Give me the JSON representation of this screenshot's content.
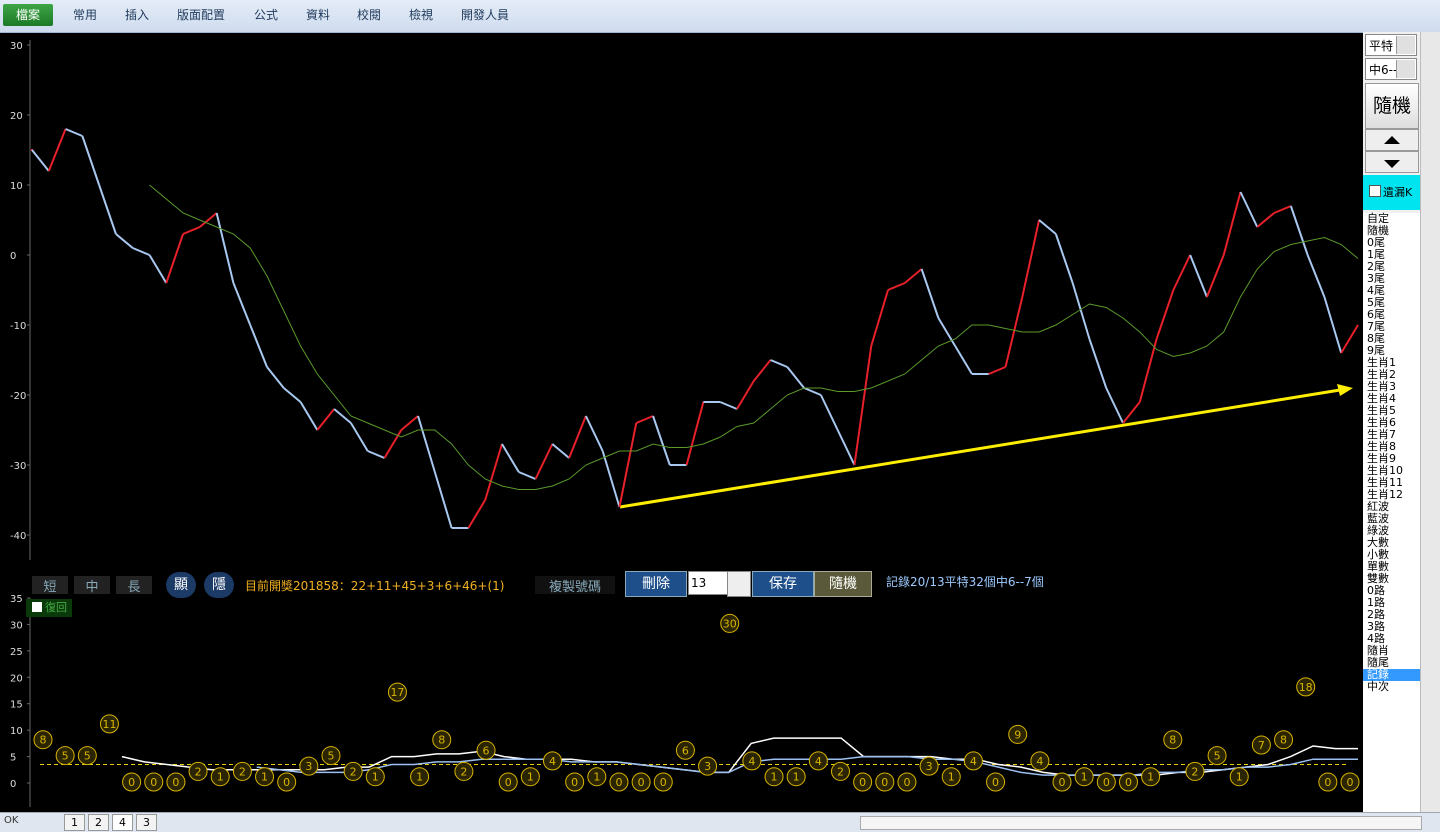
{
  "ribbon": {
    "tabs": [
      "檔案",
      "常用",
      "插入",
      "版面配置",
      "公式",
      "資料",
      "校閱",
      "檢視",
      "開發人員"
    ]
  },
  "side": {
    "dropdowns": [
      "平特",
      "中6--"
    ],
    "button": "隨機",
    "checkbox": "遺漏K",
    "items": [
      "自定",
      "隨機",
      "0尾",
      "1尾",
      "2尾",
      "3尾",
      "4尾",
      "5尾",
      "6尾",
      "7尾",
      "8尾",
      "9尾",
      "生肖1",
      "生肖2",
      "生肖3",
      "生肖4",
      "生肖5",
      "生肖6",
      "生肖7",
      "生肖8",
      "生肖9",
      "生肖10",
      "生肖11",
      "生肖12",
      "紅波",
      "藍波",
      "綠波",
      "大數",
      "小數",
      "單數",
      "雙數",
      "0路",
      "1路",
      "2路",
      "3路",
      "4路",
      "隨肖",
      "隨尾",
      "記錄",
      "中次"
    ],
    "selected": "記錄"
  },
  "controls": {
    "range_buttons": [
      "短",
      "中",
      "長"
    ],
    "show": "顯",
    "hide": "隱",
    "draw_info": "目前開獎201858：22+11+45+3+6+46+(1)",
    "copy": "複製號碼",
    "delete": "刪除",
    "count": "13",
    "save": "保存",
    "random": "隨機",
    "record": "記錄20/13平特32個中6--7個",
    "checkbox": "復回"
  },
  "sheets": [
    "1",
    "2",
    "4",
    "3"
  ],
  "status": "OK",
  "chart_data": [
    {
      "type": "line",
      "ylim": [
        -43.5,
        30.5
      ],
      "yticks": [
        30,
        20,
        10,
        0,
        -10,
        -20,
        -30,
        -40
      ],
      "series": [
        {
          "name": "走勢",
          "color": "#e8202a",
          "values": [
            15,
            12,
            18,
            17,
            10,
            3,
            1,
            0,
            -4,
            3,
            4,
            6,
            -4,
            -10,
            -16,
            -19,
            -21,
            -25,
            -22,
            -24,
            -28,
            -29,
            -25,
            -23,
            -31,
            -39,
            -39,
            -35,
            -27,
            -31,
            -32,
            -27,
            -29,
            -23,
            -28,
            -36,
            -24,
            -23,
            -30,
            -30,
            -21,
            -21,
            -22,
            -18,
            -15,
            -16,
            -19,
            -20,
            -25,
            -30,
            -13,
            -5,
            -4,
            -2,
            -9,
            -13,
            -17,
            -17,
            -16,
            -6,
            5,
            3,
            -4,
            -12,
            -19,
            -24,
            -21,
            -12,
            -5,
            0,
            -6,
            0,
            9,
            4,
            6,
            7,
            0,
            -6,
            -14,
            -10
          ]
        },
        {
          "name": "均線",
          "color": "#5a9a2a",
          "values": [
            null,
            null,
            null,
            null,
            null,
            null,
            null,
            10,
            8,
            6,
            5,
            4,
            3,
            1,
            -3,
            -8,
            -13,
            -17,
            -20,
            -23,
            -24,
            -25,
            -26,
            -25,
            -25,
            -27,
            -30,
            -32,
            -33,
            -33.5,
            -33.5,
            -33,
            -32,
            -30,
            -29,
            -28,
            -28,
            -27,
            -27.5,
            -27.5,
            -27,
            -26,
            -24.5,
            -24,
            -22,
            -20,
            -19,
            -19,
            -19.5,
            -19.5,
            -19,
            -18,
            -17,
            -15,
            -13,
            -12,
            -10,
            -10,
            -10.5,
            -11,
            -11,
            -10,
            -8.5,
            -7,
            -7.5,
            -9,
            -11,
            -13.5,
            -14.5,
            -14,
            -13,
            -11,
            -6,
            -2,
            0.5,
            1.5,
            2,
            2.5,
            1.5,
            -0.5
          ]
        }
      ]
    },
    {
      "type": "scatter",
      "ylim": [
        0,
        35
      ],
      "yticks": [
        35,
        30,
        25,
        20,
        15,
        10,
        5,
        0
      ],
      "values": [
        8,
        5,
        5,
        11,
        0,
        0,
        0,
        2,
        1,
        2,
        1,
        0,
        3,
        5,
        2,
        1,
        17,
        1,
        8,
        2,
        6,
        0,
        1,
        4,
        0,
        1,
        0,
        0,
        0,
        6,
        3,
        30,
        4,
        1,
        1,
        4,
        2,
        0,
        0,
        0,
        3,
        1,
        4,
        0,
        9,
        4,
        0,
        1,
        0,
        0,
        1,
        8,
        2,
        5,
        1,
        7,
        8,
        18,
        0,
        0
      ],
      "color": "#d8b400",
      "series": [
        {
          "name": "白線",
          "color": "#ffffff",
          "values": [
            null,
            null,
            null,
            null,
            5,
            4,
            3.5,
            3,
            2.5,
            2.5,
            2.5,
            2.5,
            2.5,
            2.5,
            3,
            3,
            5,
            5,
            5.5,
            5.5,
            6,
            5,
            4.5,
            4.5,
            4.5,
            4,
            4,
            3.5,
            3,
            2.5,
            2,
            2,
            7.5,
            8.5,
            8.5,
            8.5,
            8.5,
            5,
            5,
            5,
            5,
            4.5,
            4.5,
            3.5,
            3,
            2,
            1.5,
            1.5,
            1.5,
            1.5,
            1.5,
            2,
            2,
            2.5,
            3,
            3.5,
            5,
            7,
            6.5,
            6.5
          ]
        },
        {
          "name": "藍線",
          "color": "#9cc0f0",
          "values": [
            null,
            null,
            null,
            null,
            null,
            null,
            null,
            null,
            null,
            null,
            3,
            2.5,
            2,
            2,
            2,
            2.5,
            3.5,
            3.5,
            4,
            4,
            4.5,
            4.5,
            4.5,
            4.5,
            4,
            4,
            4,
            3.5,
            3,
            2.5,
            2,
            2,
            4,
            4.5,
            4.5,
            4.5,
            4.5,
            5,
            5,
            5,
            4.5,
            4.5,
            4,
            3,
            2,
            1.5,
            1.5,
            1.5,
            1.5,
            1.5,
            2,
            2,
            2.5,
            2.5,
            3,
            3,
            3.5,
            4.5,
            4.5,
            4.5
          ]
        }
      ],
      "reference": 3.5,
      "reference_color": "#e8d000"
    }
  ]
}
